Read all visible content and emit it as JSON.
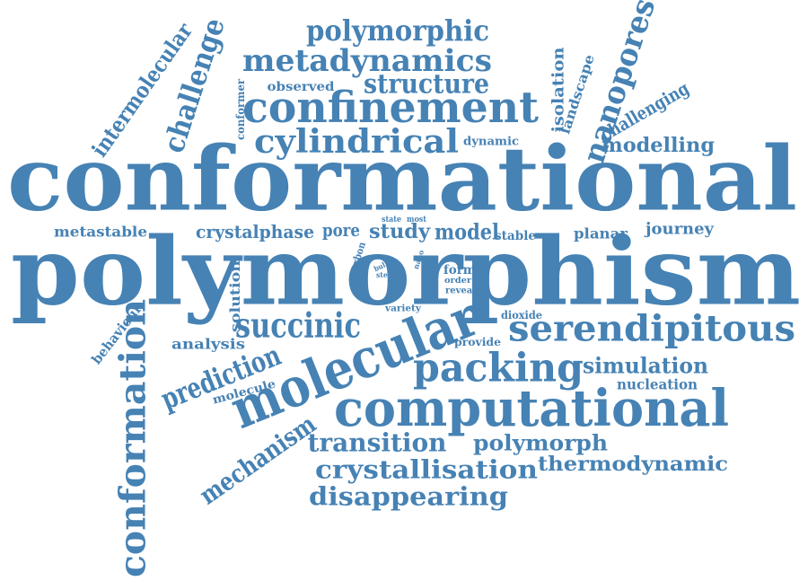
{
  "cloud": {
    "color": "#4682b4",
    "background": "#ffffff",
    "words": [
      {
        "id": "conformational",
        "text": "conformational"
      },
      {
        "id": "polymorphism",
        "text": "polymorphism"
      },
      {
        "id": "molecular",
        "text": "molecular"
      },
      {
        "id": "computational",
        "text": "computational"
      },
      {
        "id": "confinement",
        "text": "confinement"
      },
      {
        "id": "conformation",
        "text": "conformation"
      },
      {
        "id": "serendipitous",
        "text": "serendipitous"
      },
      {
        "id": "packing",
        "text": "packing"
      },
      {
        "id": "metadynamics",
        "text": "metadynamics"
      },
      {
        "id": "cylindrical",
        "text": "cylindrical"
      },
      {
        "id": "polymorphic",
        "text": "polymorphic"
      },
      {
        "id": "structure",
        "text": "structure"
      },
      {
        "id": "nanopores",
        "text": "nanopores"
      },
      {
        "id": "succinic",
        "text": "succinic"
      },
      {
        "id": "prediction",
        "text": "prediction"
      },
      {
        "id": "challenge",
        "text": "challenge"
      },
      {
        "id": "crystallisation",
        "text": "crystallisation"
      },
      {
        "id": "disappearing",
        "text": "disappearing"
      },
      {
        "id": "transition",
        "text": "transition"
      },
      {
        "id": "mechanism",
        "text": "mechanism"
      },
      {
        "id": "polymorph",
        "text": "polymorph"
      },
      {
        "id": "thermodynamic",
        "text": "thermodynamic"
      },
      {
        "id": "simulation",
        "text": "simulation"
      },
      {
        "id": "intermolecular",
        "text": "intermolecular"
      },
      {
        "id": "modelling",
        "text": "modelling"
      },
      {
        "id": "challenging",
        "text": "challenging"
      },
      {
        "id": "isolation",
        "text": "isolation"
      },
      {
        "id": "landscape",
        "text": "landscape"
      },
      {
        "id": "crystalphase",
        "text": "crystalphase"
      },
      {
        "id": "model",
        "text": "model"
      },
      {
        "id": "study",
        "text": "study"
      },
      {
        "id": "pore",
        "text": "pore"
      },
      {
        "id": "metastable",
        "text": "metastable"
      },
      {
        "id": "planar",
        "text": "planar"
      },
      {
        "id": "journey",
        "text": "journey"
      },
      {
        "id": "analysis",
        "text": "analysis"
      },
      {
        "id": "nucleation",
        "text": "nucleation"
      },
      {
        "id": "behaviour",
        "text": "behaviour"
      },
      {
        "id": "solution",
        "text": "solution"
      },
      {
        "id": "molecule",
        "text": "molecule"
      },
      {
        "id": "conformer",
        "text": "conformer"
      },
      {
        "id": "observed",
        "text": "observed"
      },
      {
        "id": "dynamic",
        "text": "dynamic"
      },
      {
        "id": "stable",
        "text": "stable"
      },
      {
        "id": "form",
        "text": "form"
      },
      {
        "id": "order",
        "text": "order"
      },
      {
        "id": "reveal",
        "text": "reveal"
      },
      {
        "id": "variety",
        "text": "variety"
      },
      {
        "id": "dioxide",
        "text": "dioxide"
      },
      {
        "id": "provide",
        "text": "provide"
      },
      {
        "id": "carbon",
        "text": "carbon"
      },
      {
        "id": "state",
        "text": "state"
      },
      {
        "id": "most",
        "text": "most"
      },
      {
        "id": "nano",
        "text": "nano"
      },
      {
        "id": "bulk",
        "text": "bulk"
      },
      {
        "id": "step",
        "text": "step"
      }
    ]
  }
}
